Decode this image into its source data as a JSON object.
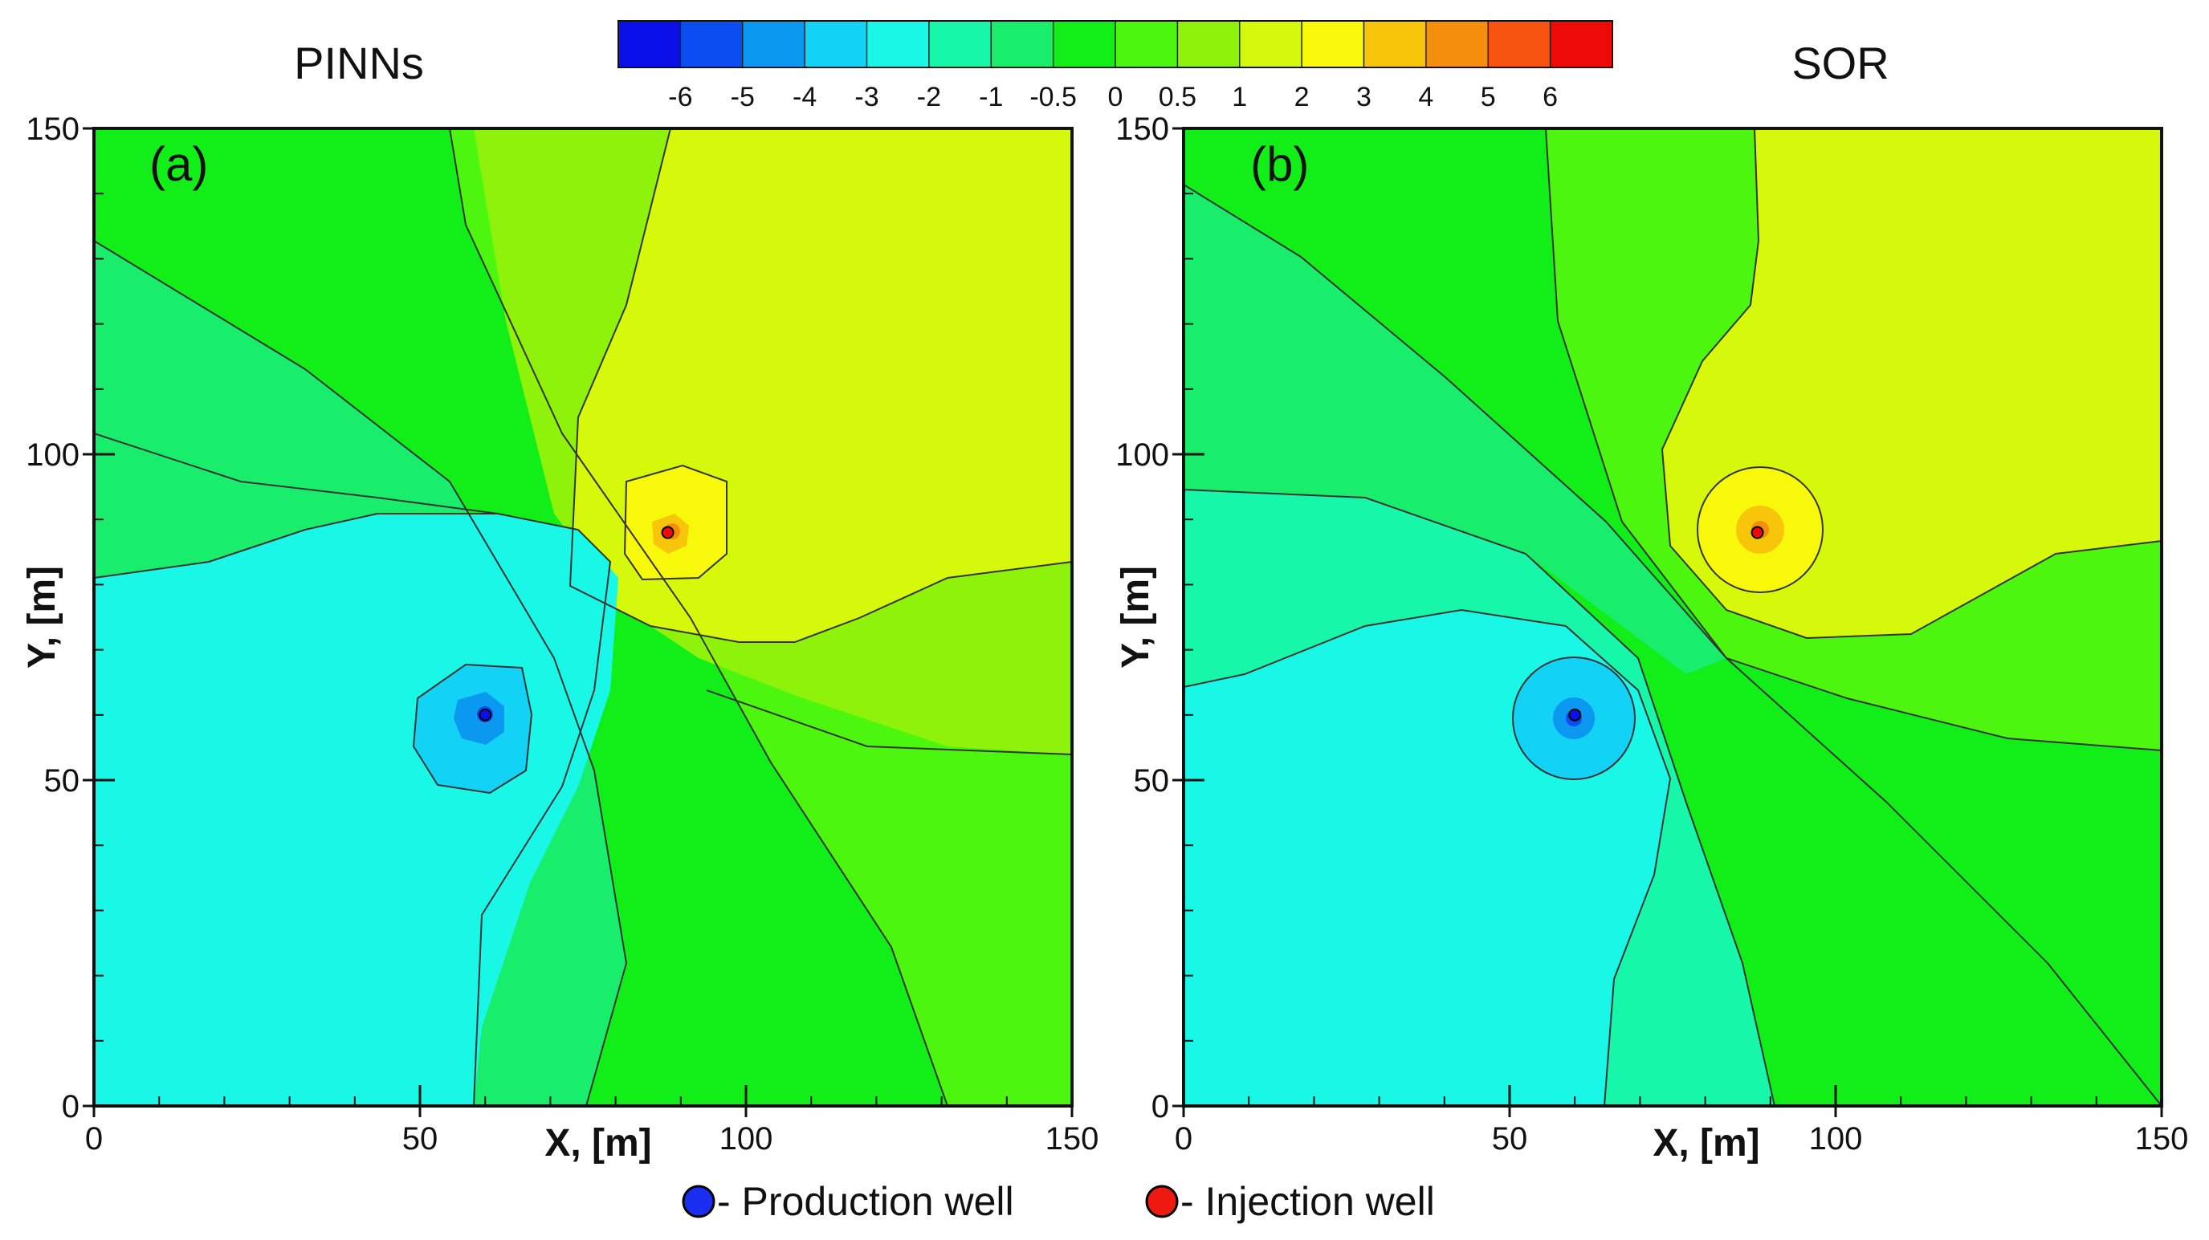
{
  "chart_data": {
    "type": "contour",
    "colorbar": {
      "levels": [
        "-6",
        "-5",
        "-4",
        "-3",
        "-2",
        "-1",
        "-0.5",
        "0",
        "0.5",
        "1",
        "2",
        "3",
        "4",
        "5",
        "6"
      ],
      "colors": [
        "#0a10e8",
        "#0a4ef2",
        "#0a98f0",
        "#12d2f6",
        "#19f7e6",
        "#17f7aa",
        "#18ee6c",
        "#12ee18",
        "#4cf60e",
        "#8ef20b",
        "#d6f90b",
        "#f7f80a",
        "#f7c60a",
        "#f58e0b",
        "#f75311",
        "#ef0a0a"
      ]
    },
    "panels": [
      {
        "title": "PINNs",
        "label": "(a)",
        "xlabel": "X, [m]",
        "ylabel": "Y, [m]",
        "xlim": [
          0,
          150
        ],
        "ylim": [
          0,
          150
        ],
        "xticks": [
          "0",
          "50",
          "100",
          "150"
        ],
        "yticks": [
          "0",
          "50",
          "100",
          "150"
        ],
        "production_well": {
          "x": 60,
          "y": 60
        },
        "injection_well": {
          "x": 88,
          "y": 88
        }
      },
      {
        "title": "SOR",
        "label": "(b)",
        "xlabel": "X, [m]",
        "ylabel": "Y, [m]",
        "xlim": [
          0,
          150
        ],
        "ylim": [
          0,
          150
        ],
        "xticks": [
          "0",
          "50",
          "100",
          "150"
        ],
        "yticks": [
          "0",
          "50",
          "100",
          "150"
        ],
        "production_well": {
          "x": 60,
          "y": 60
        },
        "injection_well": {
          "x": 88,
          "y": 88
        }
      }
    ],
    "legend": [
      {
        "label": "- Production well",
        "color": "#1a2ef0"
      },
      {
        "label": "- Injection well",
        "color": "#ee1a12"
      }
    ]
  }
}
